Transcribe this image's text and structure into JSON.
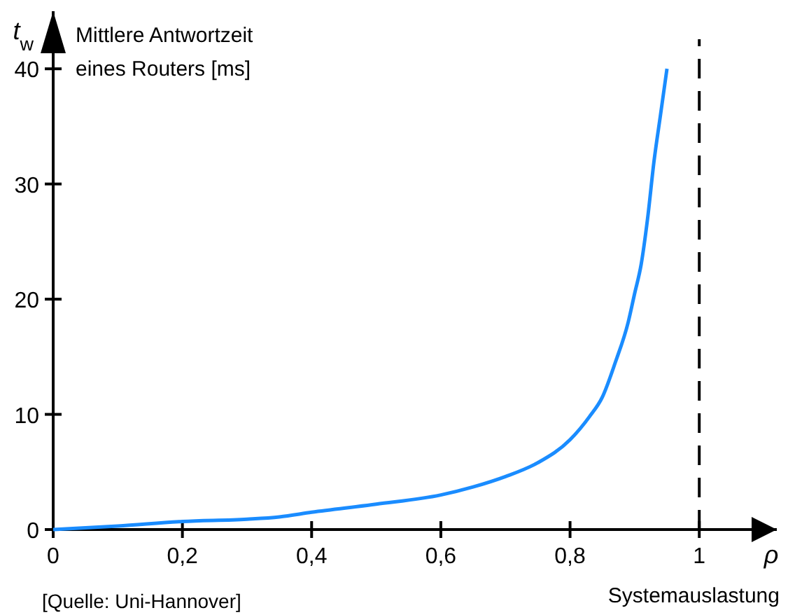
{
  "chart_data": {
    "type": "line",
    "xlabel": "ρ",
    "ylabel": "t$_{w}$",
    "annotations": [
      "Mittlere Antwortzeit eines Routers [ms]",
      "Systemauslastung",
      "[Quelle: Uni-Hannover]"
    ],
    "x": [
      0,
      0.1,
      0.2,
      0.3,
      0.35,
      0.4,
      0.5,
      0.6,
      0.65,
      0.7,
      0.75,
      0.8,
      0.83,
      0.85,
      0.87,
      0.89,
      0.9,
      0.91,
      0.92,
      0.93,
      0.94,
      0.95
    ],
    "series": [
      {
        "color": "#1a8cff",
        "values": [
          0,
          0.3,
          0.7,
          0.9,
          1.1,
          1.5,
          2.2,
          3,
          3.7,
          4.6,
          5.8,
          7.8,
          9.8,
          11.5,
          14.5,
          18,
          20.5,
          23,
          27,
          32,
          36,
          40
        ]
      }
    ],
    "xlim": [
      0,
      1.12
    ],
    "ylim": [
      0,
      45
    ],
    "xticks": [
      0,
      {
        "value": 0.2,
        "label": "0,2"
      },
      {
        "value": 0.4,
        "label": "0,4"
      },
      {
        "value": 0.6,
        "label": "0,6"
      },
      {
        "value": 0.8,
        "label": "0,8"
      },
      1
    ],
    "yticks": [
      0,
      10,
      20,
      30,
      40
    ],
    "ref_lines": [
      {
        "axis": "x",
        "value": 1,
        "color": "#000000",
        "line_style": "dashed"
      }
    ],
    "grid": false,
    "marker": "none",
    "line_style": "solid"
  }
}
